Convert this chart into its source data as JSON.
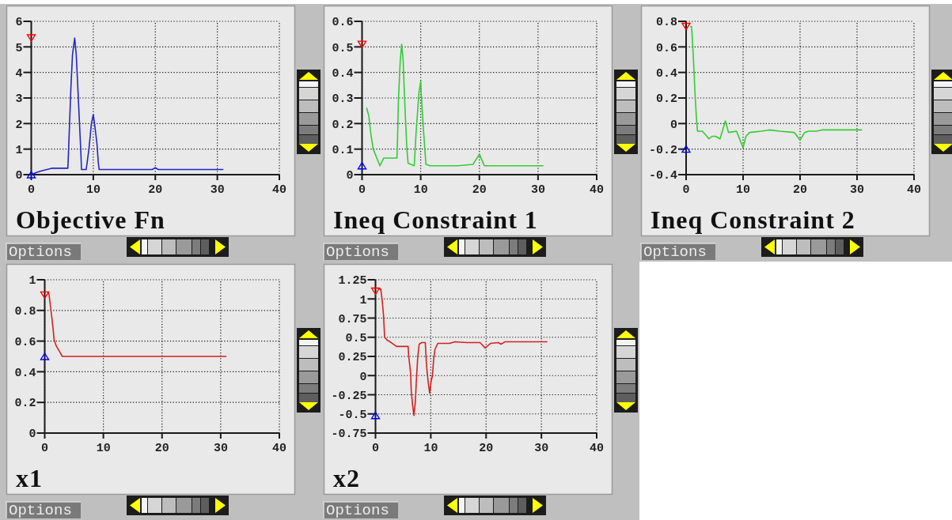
{
  "chart_data": [
    {
      "type": "line",
      "title": "Objective Fn",
      "annotations": [
        "Options"
      ],
      "xlim": [
        0,
        40
      ],
      "xticks": [
        0,
        10,
        20,
        30,
        40
      ],
      "ylim": [
        0,
        6
      ],
      "yticks": [
        0,
        1,
        2,
        3,
        4,
        5,
        6
      ],
      "grid": true,
      "series": [
        {
          "color": "#2424c8",
          "x": [
            0,
            1,
            2,
            3.3,
            5.9,
            6.0,
            6.2,
            6.4,
            6.65,
            7.0,
            7.25,
            7.5,
            7.75,
            8.0,
            8.1,
            8.85,
            9.0,
            9.3,
            9.5,
            9.7,
            10.0,
            10.2,
            10.6,
            10.8,
            10.95,
            19.5,
            20.0,
            20.5,
            30.9
          ],
          "values": [
            0,
            0.1,
            0.17,
            0.25,
            0.25,
            0.85,
            2.15,
            3.45,
            4.7,
            5.35,
            4.7,
            3.45,
            2.15,
            0.85,
            0.2,
            0.2,
            0.45,
            1.0,
            1.5,
            2.0,
            2.35,
            2.0,
            1.2,
            0.5,
            0.2,
            0.2,
            0.27,
            0.2,
            0.2
          ]
        },
        {
          "type": "scatter",
          "marker": "triangle",
          "color": "#ff0000",
          "x": [
            0
          ],
          "values": [
            5.35
          ]
        },
        {
          "type": "scatter",
          "marker": "triangle",
          "color": "#0000ff",
          "x": [
            0
          ],
          "values": [
            0
          ]
        }
      ]
    },
    {
      "type": "line",
      "title": "Ineq Constraint 1",
      "annotations": [
        "Options"
      ],
      "xlim": [
        0,
        40
      ],
      "xticks": [
        0,
        10,
        20,
        30,
        40
      ],
      "ylim": [
        0,
        0.6
      ],
      "yticks": [
        0,
        0.1,
        0.2,
        0.3,
        0.4,
        0.5,
        0.6
      ],
      "grid": true,
      "series": [
        {
          "color": "#33cc33",
          "x": [
            0.8,
            1.15,
            1.5,
            1.9,
            3.05,
            3.7,
            5.95,
            6.05,
            6.2,
            6.5,
            6.75,
            7.0,
            7.2,
            7.4,
            7.65,
            7.85,
            8.9,
            9.0,
            9.2,
            9.45,
            9.7,
            10.0,
            10.1,
            10.4,
            10.7,
            10.9,
            11.6,
            16.3,
            18.9,
            20.0,
            20.85,
            30.85
          ],
          "values": [
            0.26,
            0.23,
            0.16,
            0.1,
            0.035,
            0.065,
            0.065,
            0.14,
            0.29,
            0.44,
            0.51,
            0.45,
            0.33,
            0.22,
            0.1,
            0.045,
            0.035,
            0.075,
            0.16,
            0.24,
            0.32,
            0.365,
            0.31,
            0.2,
            0.1,
            0.04,
            0.035,
            0.035,
            0.04,
            0.08,
            0.035,
            0.035
          ]
        },
        {
          "type": "scatter",
          "marker": "triangle",
          "color": "#ff0000",
          "x": [
            0
          ],
          "values": [
            0.51
          ]
        },
        {
          "type": "scatter",
          "marker": "triangle",
          "color": "#0000ff",
          "x": [
            0
          ],
          "values": [
            0.035
          ]
        }
      ]
    },
    {
      "type": "line",
      "title": "Ineq Constraint 2",
      "annotations": [
        "Options"
      ],
      "xlim": [
        0,
        40
      ],
      "xticks": [
        0,
        10,
        20,
        30,
        40
      ],
      "ylim": [
        -0.4,
        0.8
      ],
      "yticks": [
        -0.4,
        -0.2,
        0,
        0.2,
        0.4,
        0.6,
        0.8
      ],
      "grid": true,
      "series": [
        {
          "color": "#33cc33",
          "x": [
            0.8,
            0.95,
            1.1,
            1.35,
            1.55,
            1.8,
            2.0,
            2.85,
            3.65,
            4.0,
            4.55,
            5.2,
            5.95,
            6.9,
            7.45,
            8.85,
            9.3,
            10.0,
            10.5,
            11.15,
            13.2,
            14.6,
            16.45,
            19.0,
            20.0,
            20.8,
            21.5,
            22.9,
            23.8,
            30.8
          ],
          "values": [
            0.76,
            0.76,
            0.66,
            0.45,
            0.25,
            0.05,
            -0.06,
            -0.06,
            -0.1,
            -0.12,
            -0.1,
            -0.1,
            -0.12,
            0.02,
            -0.07,
            -0.06,
            -0.11,
            -0.19,
            -0.1,
            -0.07,
            -0.06,
            -0.05,
            -0.06,
            -0.07,
            -0.13,
            -0.07,
            -0.06,
            -0.06,
            -0.05,
            -0.05
          ]
        },
        {
          "type": "scatter",
          "marker": "triangle",
          "color": "#ff0000",
          "x": [
            0
          ],
          "values": [
            0.76
          ]
        },
        {
          "type": "scatter",
          "marker": "triangle",
          "color": "#0000ff",
          "x": [
            0
          ],
          "values": [
            -0.2
          ]
        }
      ]
    },
    {
      "type": "line",
      "title": "x1",
      "annotations": [
        "Options"
      ],
      "xlim": [
        0,
        40
      ],
      "xticks": [
        0,
        10,
        20,
        30,
        40
      ],
      "ylim": [
        0,
        1
      ],
      "yticks": [
        0,
        0.2,
        0.4,
        0.6,
        0.8,
        1
      ],
      "grid": true,
      "series": [
        {
          "color": "#d42020",
          "x": [
            0.6,
            0.75,
            1.1,
            1.4,
            1.6,
            1.95,
            2.7,
            3.0,
            30.9
          ],
          "values": [
            0.92,
            0.9,
            0.79,
            0.69,
            0.61,
            0.57,
            0.52,
            0.5,
            0.5
          ]
        },
        {
          "type": "scatter",
          "marker": "triangle",
          "color": "#ff0000",
          "x": [
            0
          ],
          "values": [
            0.9
          ]
        },
        {
          "type": "scatter",
          "marker": "triangle",
          "color": "#0000ff",
          "x": [
            0
          ],
          "values": [
            0.5
          ]
        }
      ]
    },
    {
      "type": "line",
      "title": "x2",
      "annotations": [
        "Options"
      ],
      "xlim": [
        0,
        40
      ],
      "xticks": [
        0,
        10,
        20,
        30,
        40
      ],
      "ylim": [
        -0.75,
        1.25
      ],
      "yticks": [
        -0.75,
        -0.5,
        -0.25,
        0,
        0.25,
        0.5,
        0.75,
        1,
        1.25
      ],
      "grid": true,
      "series": [
        {
          "color": "#d42020",
          "x": [
            0.55,
            0.95,
            1.2,
            1.45,
            1.65,
            2.15,
            2.85,
            3.8,
            5.9,
            6.0,
            6.35,
            6.45,
            6.7,
            6.95,
            7.2,
            7.4,
            7.65,
            7.9,
            8.35,
            9.0,
            9.25,
            9.55,
            9.8,
            10.05,
            10.3,
            10.5,
            10.75,
            11.25,
            13.4,
            14.35,
            16.5,
            18.9,
            19.85,
            20.8,
            22.2,
            22.7,
            23.4,
            31.0
          ],
          "values": [
            1.13,
            1.13,
            0.99,
            0.79,
            0.5,
            0.46,
            0.43,
            0.38,
            0.38,
            0.26,
            0.03,
            -0.18,
            -0.38,
            -0.52,
            -0.35,
            -0.05,
            0.25,
            0.41,
            0.43,
            0.43,
            0.11,
            -0.1,
            -0.23,
            -0.08,
            0,
            0.2,
            0.34,
            0.42,
            0.42,
            0.44,
            0.43,
            0.43,
            0.36,
            0.42,
            0.43,
            0.41,
            0.44,
            0.44
          ]
        },
        {
          "type": "scatter",
          "marker": "triangle",
          "color": "#ff0000",
          "x": [
            0
          ],
          "values": [
            1.1
          ]
        },
        {
          "type": "scatter",
          "marker": "triangle",
          "color": "#0000ff",
          "x": [
            0
          ],
          "values": [
            -0.52
          ]
        }
      ]
    }
  ]
}
